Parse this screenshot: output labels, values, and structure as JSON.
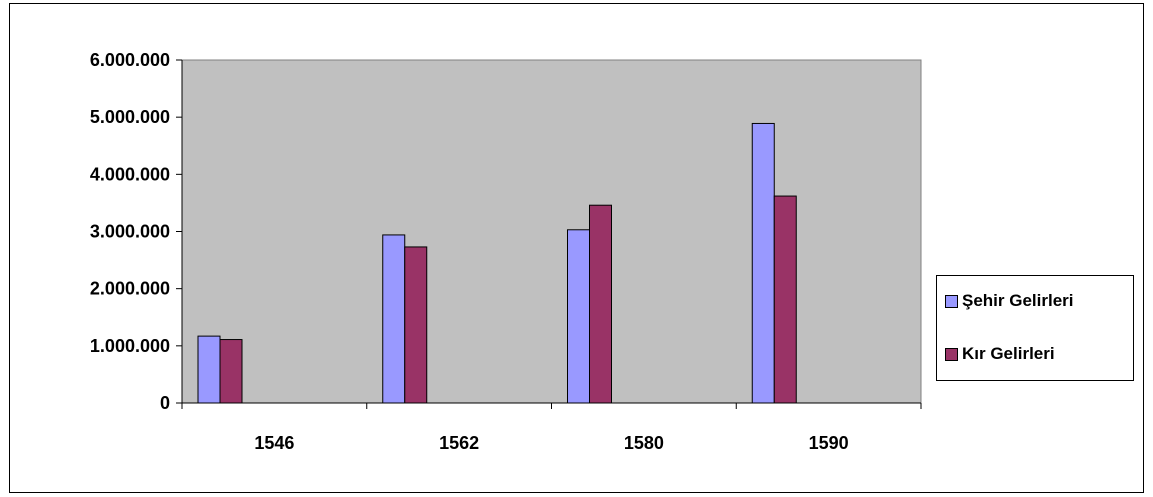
{
  "chart_data": {
    "type": "bar",
    "categories": [
      "1546",
      "1562",
      "1580",
      "1590"
    ],
    "series": [
      {
        "name": "Şehir Gelirleri",
        "values": [
          1170000,
          2940000,
          3030000,
          4890000
        ],
        "color": "#9999ff"
      },
      {
        "name": "Kır Gelirleri",
        "values": [
          1110000,
          2730000,
          3460000,
          3620000
        ],
        "color": "#993366"
      }
    ],
    "y_ticks": [
      0,
      1000000,
      2000000,
      3000000,
      4000000,
      5000000,
      6000000
    ],
    "y_tick_labels": [
      "0",
      "1.000.000",
      "2.000.000",
      "3.000.000",
      "4.000.000",
      "5.000.000",
      "6.000.000"
    ],
    "ylim": [
      0,
      6000000
    ],
    "title": "",
    "xlabel": "",
    "ylabel": "",
    "grid": false,
    "legend": "right",
    "plot_background": "#c0c0c0"
  }
}
